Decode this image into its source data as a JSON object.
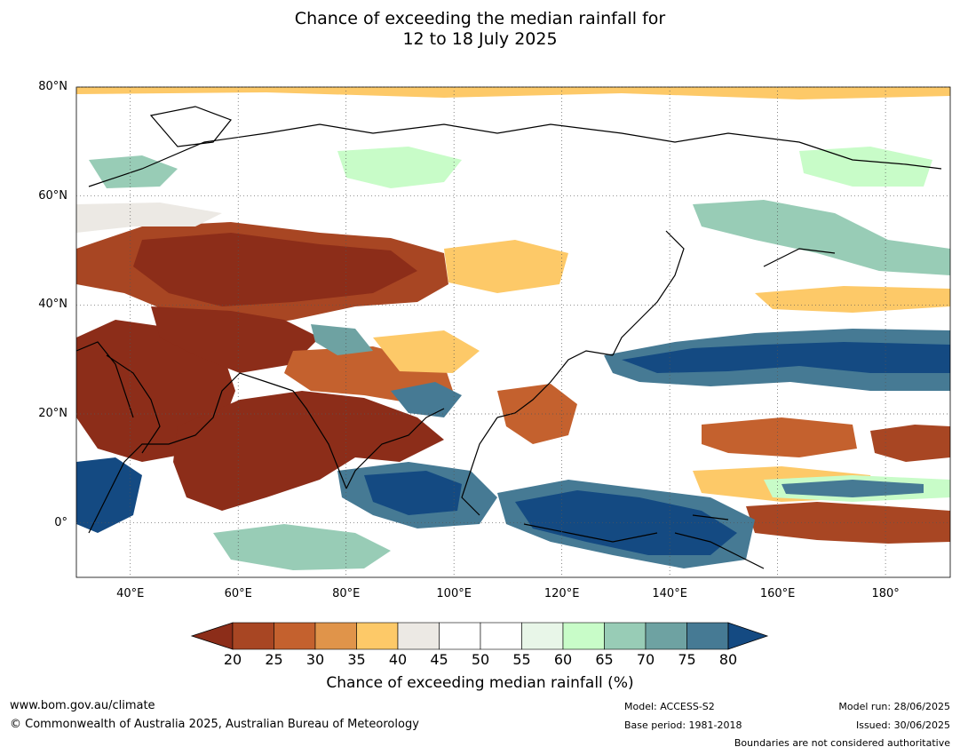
{
  "title_line1": "Chance of exceeding the median rainfall for",
  "title_line2": "12 to 18 July 2025",
  "map": {
    "lat_labels": [
      "80°N",
      "60°N",
      "40°N",
      "20°N",
      "0°"
    ],
    "lon_labels": [
      "40°E",
      "60°E",
      "80°E",
      "100°E",
      "120°E",
      "140°E",
      "160°E",
      "180°"
    ],
    "extent": {
      "lon": [
        30,
        192
      ],
      "lat": [
        -10,
        80
      ]
    },
    "grid_lons": [
      40,
      60,
      80,
      100,
      120,
      140,
      160,
      180
    ],
    "grid_lats": [
      80,
      60,
      40,
      20,
      0
    ]
  },
  "colorbar": {
    "title": "Chance of exceeding median rainfall (%)",
    "ticks": [
      "20",
      "25",
      "30",
      "35",
      "40",
      "45",
      "50",
      "55",
      "60",
      "65",
      "70",
      "75",
      "80"
    ],
    "colors": {
      "below_20": "#8c2d19",
      "20-25": "#a84623",
      "25-30": "#c4612e",
      "30-35": "#e0944a",
      "35-40": "#fdc968",
      "40-45": "#ece9e4",
      "45-50": "#ffffff",
      "50-55": "#ffffff",
      "55-60": "#e8f6e8",
      "60-65": "#c8fcc8",
      "65-70": "#98ccb6",
      "70-75": "#6ea2a2",
      "75-80": "#467a94",
      "above_80": "#144a82"
    }
  },
  "footer": {
    "website": "www.bom.gov.au/climate",
    "copyright": "© Commonwealth of Australia 2025, Australian Bureau of Meteorology",
    "model": "Model: ACCESS-S2",
    "base_period": "Base period: 1981-2018",
    "model_run": "Model run: 28/06/2025",
    "issued": "Issued: 30/06/2025",
    "disclaimer": "Boundaries are not considered authoritative"
  }
}
